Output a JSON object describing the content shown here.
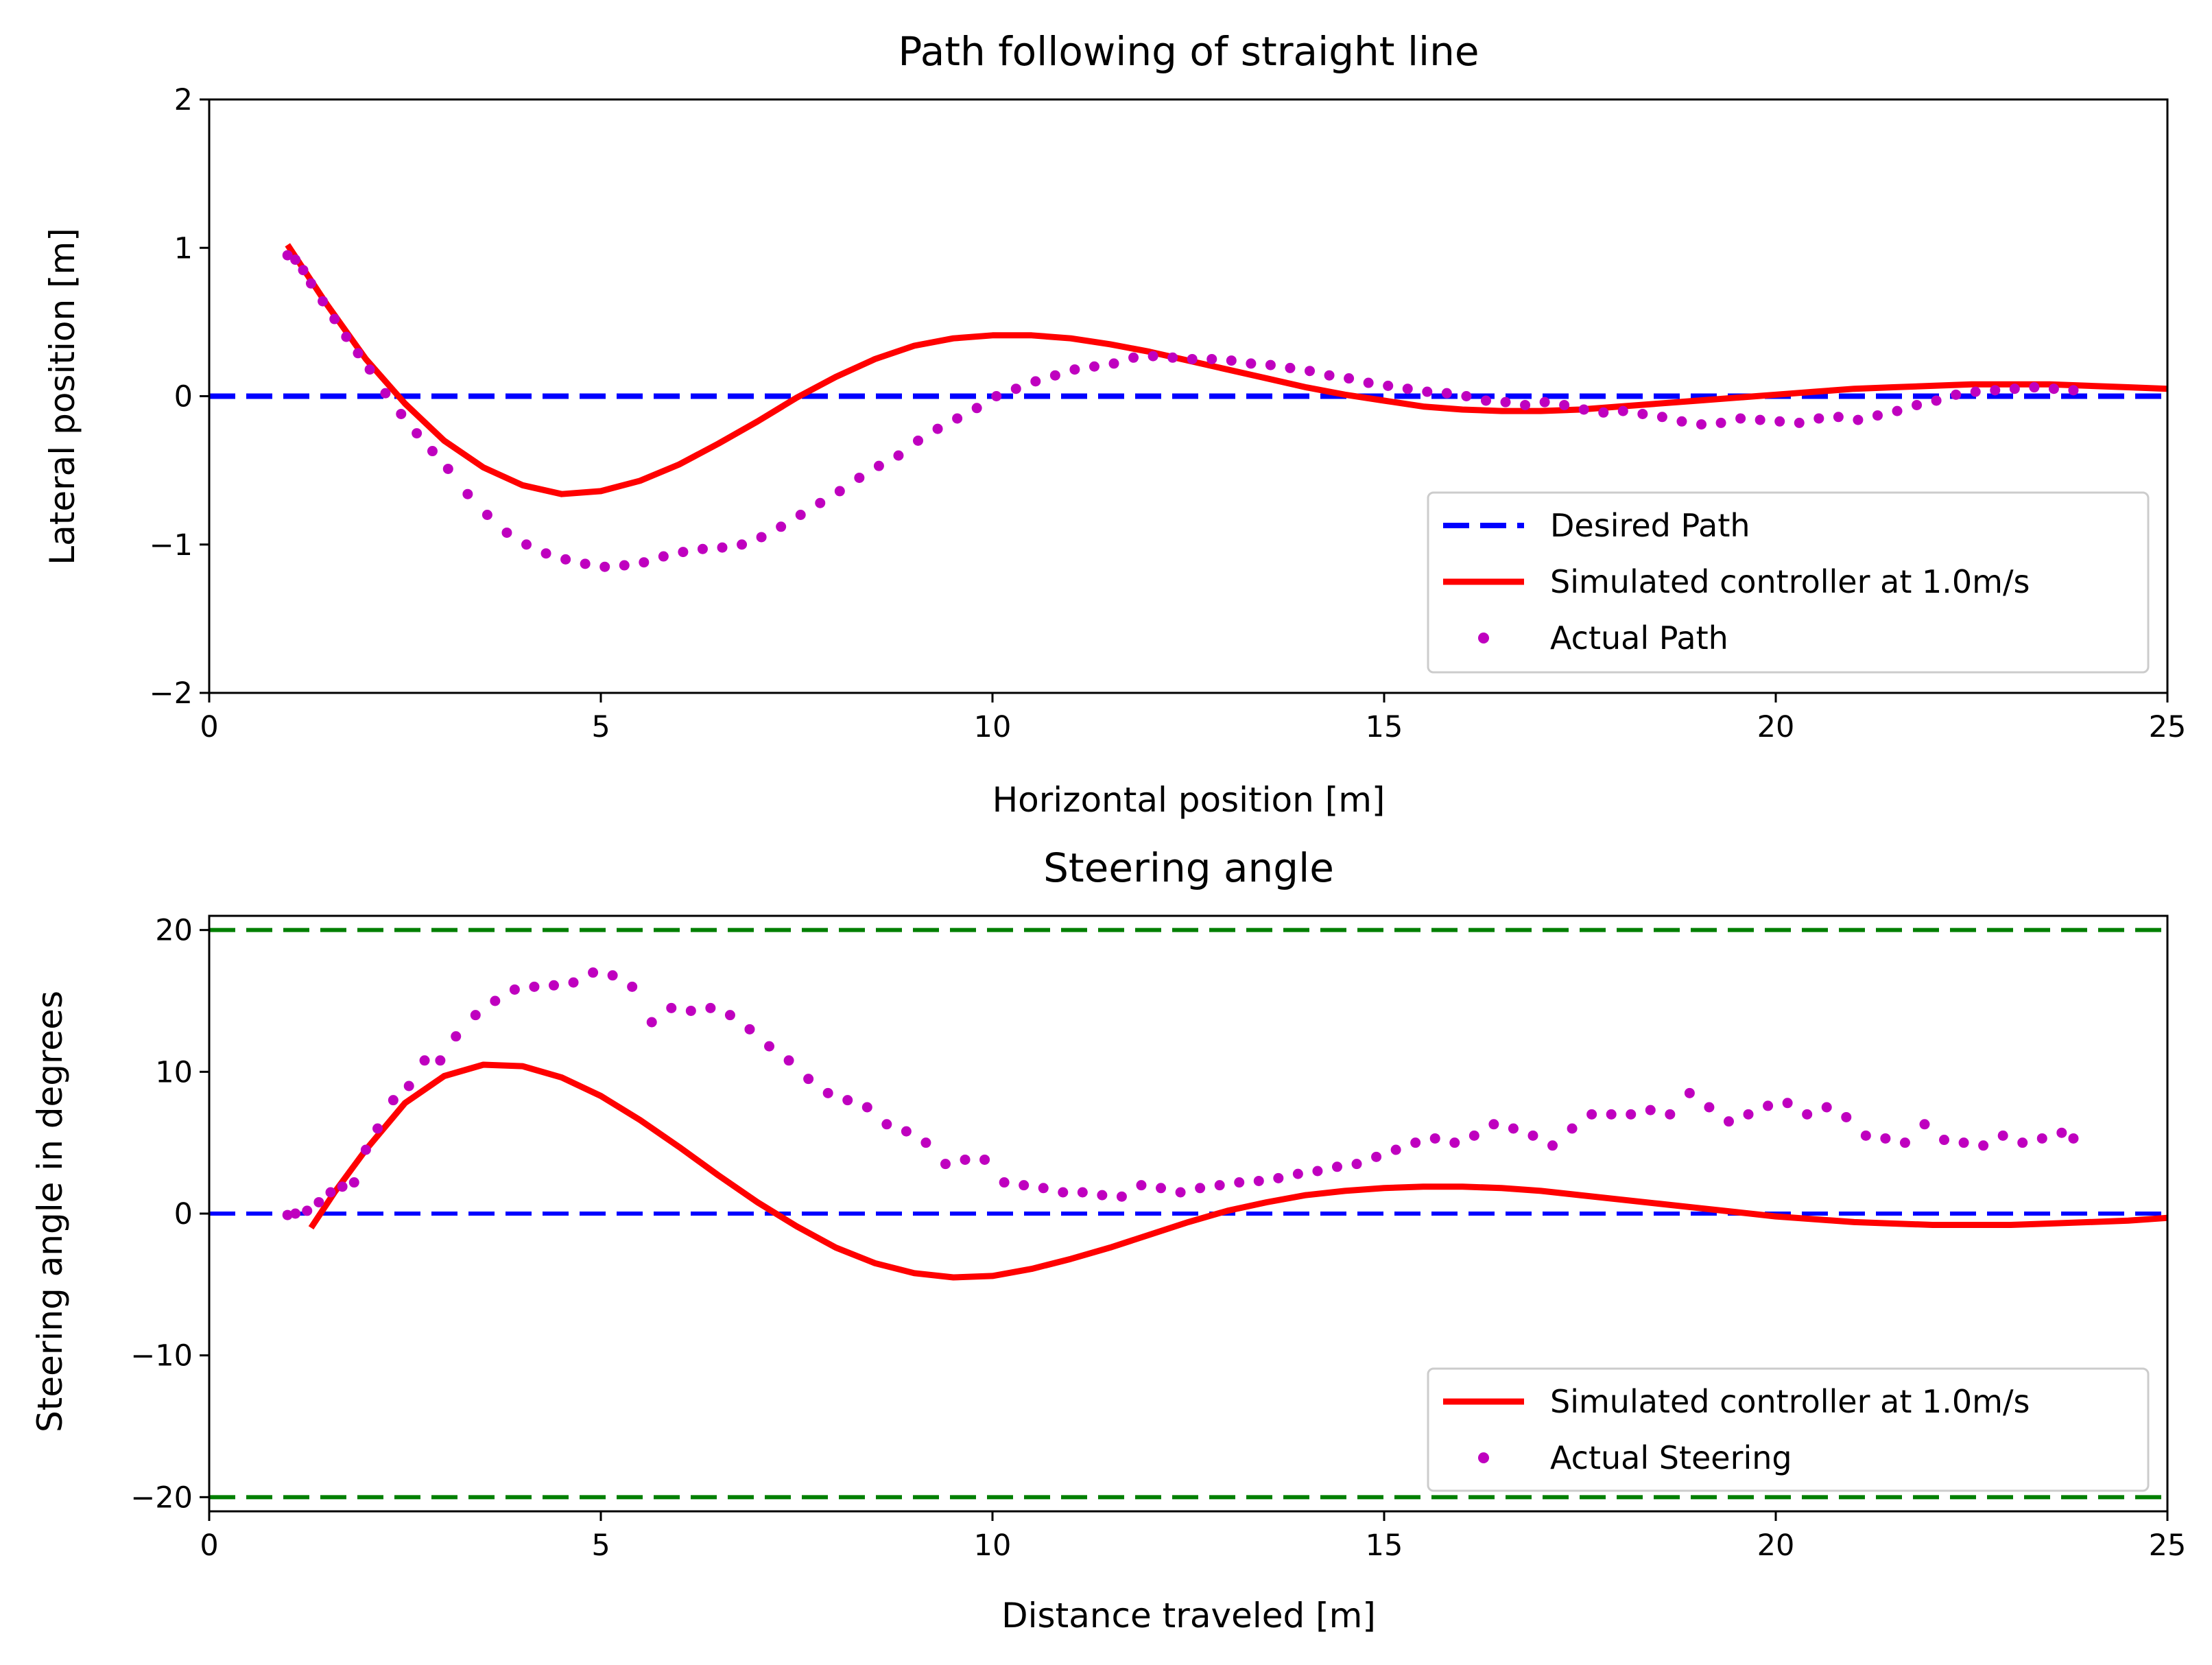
{
  "chart_data": [
    {
      "type": "line",
      "title": "Path following of straight line",
      "xlabel": "Horizontal position [m]",
      "ylabel": "Lateral position [m]",
      "xlim": [
        0,
        25
      ],
      "ylim": [
        -2,
        2
      ],
      "xticks": [
        0,
        5,
        10,
        15,
        20,
        25
      ],
      "yticks": [
        -2,
        -1,
        0,
        1,
        2
      ],
      "ytick_labels": [
        "−2",
        "−1",
        "0",
        "1",
        "2"
      ],
      "legend_position": "lower-right",
      "series": [
        {
          "name": "Desired Path",
          "style": "dashed",
          "color": "#0000ff",
          "x": [
            0,
            25
          ],
          "y": [
            0,
            0
          ]
        },
        {
          "name": "Simulated controller at 1.0m/s",
          "style": "solid",
          "color": "#ff0000",
          "x": [
            1.0,
            1.5,
            2.0,
            2.5,
            3.0,
            3.5,
            4.0,
            4.5,
            5.0,
            5.5,
            6.0,
            6.5,
            7.0,
            7.5,
            8.0,
            8.5,
            9.0,
            9.5,
            10.0,
            10.5,
            11.0,
            11.5,
            12.0,
            12.5,
            13.0,
            13.5,
            14.0,
            14.5,
            15.0,
            15.5,
            16.0,
            16.5,
            17.0,
            17.5,
            18.0,
            18.5,
            19.0,
            19.5,
            20.0,
            20.5,
            21.0,
            21.5,
            22.0,
            22.5,
            23.0,
            23.5,
            24.0,
            24.5,
            25.0
          ],
          "y": [
            1.02,
            0.62,
            0.25,
            -0.05,
            -0.3,
            -0.48,
            -0.6,
            -0.66,
            -0.64,
            -0.57,
            -0.46,
            -0.32,
            -0.17,
            -0.01,
            0.13,
            0.25,
            0.34,
            0.39,
            0.41,
            0.41,
            0.39,
            0.35,
            0.3,
            0.24,
            0.18,
            0.12,
            0.06,
            0.01,
            -0.03,
            -0.07,
            -0.09,
            -0.1,
            -0.1,
            -0.09,
            -0.07,
            -0.05,
            -0.03,
            -0.01,
            0.01,
            0.03,
            0.05,
            0.06,
            0.07,
            0.08,
            0.08,
            0.08,
            0.07,
            0.06,
            0.05
          ]
        },
        {
          "name": "Actual Path",
          "style": "dotted-markers",
          "color": "#bf00bf",
          "x": [
            1.0,
            1.1,
            1.2,
            1.3,
            1.45,
            1.6,
            1.75,
            1.9,
            2.05,
            2.25,
            2.45,
            2.65,
            2.85,
            3.05,
            3.3,
            3.55,
            3.8,
            4.05,
            4.3,
            4.55,
            4.8,
            5.05,
            5.3,
            5.55,
            5.8,
            6.05,
            6.3,
            6.55,
            6.8,
            7.05,
            7.3,
            7.55,
            7.8,
            8.05,
            8.3,
            8.55,
            8.8,
            9.05,
            9.3,
            9.55,
            9.8,
            10.05,
            10.3,
            10.55,
            10.8,
            11.05,
            11.3,
            11.55,
            11.8,
            12.05,
            12.3,
            12.55,
            12.8,
            13.05,
            13.3,
            13.55,
            13.8,
            14.05,
            14.3,
            14.55,
            14.8,
            15.05,
            15.3,
            15.55,
            15.8,
            16.05,
            16.3,
            16.55,
            16.8,
            17.05,
            17.3,
            17.55,
            17.8,
            18.05,
            18.3,
            18.55,
            18.8,
            19.05,
            19.3,
            19.55,
            19.8,
            20.05,
            20.3,
            20.55,
            20.8,
            21.05,
            21.3,
            21.55,
            21.8,
            22.05,
            22.3,
            22.55,
            22.8,
            23.05,
            23.3,
            23.55,
            23.8
          ],
          "y": [
            0.95,
            0.92,
            0.85,
            0.76,
            0.64,
            0.52,
            0.4,
            0.29,
            0.18,
            0.02,
            -0.12,
            -0.25,
            -0.37,
            -0.49,
            -0.66,
            -0.8,
            -0.92,
            -1.0,
            -1.06,
            -1.1,
            -1.13,
            -1.15,
            -1.14,
            -1.12,
            -1.08,
            -1.05,
            -1.03,
            -1.02,
            -1.0,
            -0.95,
            -0.88,
            -0.8,
            -0.72,
            -0.64,
            -0.55,
            -0.47,
            -0.4,
            -0.3,
            -0.22,
            -0.15,
            -0.08,
            0.0,
            0.05,
            0.1,
            0.14,
            0.18,
            0.2,
            0.22,
            0.26,
            0.27,
            0.26,
            0.25,
            0.25,
            0.24,
            0.22,
            0.21,
            0.19,
            0.17,
            0.14,
            0.12,
            0.09,
            0.07,
            0.05,
            0.03,
            0.02,
            0.0,
            -0.03,
            -0.04,
            -0.06,
            -0.04,
            -0.06,
            -0.09,
            -0.11,
            -0.1,
            -0.12,
            -0.14,
            -0.17,
            -0.19,
            -0.18,
            -0.15,
            -0.16,
            -0.17,
            -0.18,
            -0.15,
            -0.14,
            -0.16,
            -0.13,
            -0.1,
            -0.06,
            -0.03,
            0.01,
            0.03,
            0.04,
            0.05,
            0.06,
            0.05,
            0.04
          ]
        }
      ]
    },
    {
      "type": "line",
      "title": "Steering angle",
      "xlabel": "Distance traveled [m]",
      "ylabel": "Steering angle in degrees",
      "xlim": [
        0,
        25
      ],
      "ylim": [
        -21,
        21
      ],
      "xticks": [
        0,
        5,
        10,
        15,
        20,
        25
      ],
      "yticks": [
        -20,
        -10,
        0,
        10,
        20
      ],
      "ytick_labels": [
        "−20",
        "−10",
        "0",
        "10",
        "20"
      ],
      "legend_position": "lower-right",
      "reference_lines": [
        {
          "y": 20,
          "color": "#007f00",
          "style": "dashed"
        },
        {
          "y": -20,
          "color": "#007f00",
          "style": "dashed"
        },
        {
          "y": 0,
          "color": "#0000ff",
          "style": "dashed"
        }
      ],
      "series": [
        {
          "name": "Simulated controller at 1.0m/s",
          "style": "solid",
          "color": "#ff0000",
          "x": [
            1.3,
            1.6,
            2.0,
            2.5,
            3.0,
            3.5,
            4.0,
            4.5,
            5.0,
            5.5,
            6.0,
            6.5,
            7.0,
            7.5,
            8.0,
            8.5,
            9.0,
            9.5,
            10.0,
            10.5,
            11.0,
            11.5,
            12.0,
            12.5,
            13.0,
            13.5,
            14.0,
            14.5,
            15.0,
            15.5,
            16.0,
            16.5,
            17.0,
            17.5,
            18.0,
            18.5,
            19.0,
            19.5,
            20.0,
            20.5,
            21.0,
            21.5,
            22.0,
            22.5,
            23.0,
            23.5,
            24.0,
            24.5,
            25.0
          ],
          "y": [
            -1.0,
            1.5,
            4.5,
            7.8,
            9.7,
            10.5,
            10.4,
            9.6,
            8.3,
            6.6,
            4.7,
            2.7,
            0.8,
            -0.9,
            -2.4,
            -3.5,
            -4.2,
            -4.5,
            -4.4,
            -3.9,
            -3.2,
            -2.4,
            -1.5,
            -0.6,
            0.2,
            0.8,
            1.3,
            1.6,
            1.8,
            1.9,
            1.9,
            1.8,
            1.6,
            1.3,
            1.0,
            0.7,
            0.4,
            0.1,
            -0.2,
            -0.4,
            -0.6,
            -0.7,
            -0.8,
            -0.8,
            -0.8,
            -0.7,
            -0.6,
            -0.5,
            -0.3
          ]
        },
        {
          "name": "Actual Steering",
          "style": "dotted-markers",
          "color": "#bf00bf",
          "x": [
            1.0,
            1.1,
            1.25,
            1.4,
            1.55,
            1.7,
            1.85,
            2.0,
            2.15,
            2.35,
            2.55,
            2.75,
            2.95,
            3.15,
            3.4,
            3.65,
            3.9,
            4.15,
            4.4,
            4.65,
            4.9,
            5.15,
            5.4,
            5.65,
            5.9,
            6.15,
            6.4,
            6.65,
            6.9,
            7.15,
            7.4,
            7.65,
            7.9,
            8.15,
            8.4,
            8.65,
            8.9,
            9.15,
            9.4,
            9.65,
            9.9,
            10.15,
            10.4,
            10.65,
            10.9,
            11.15,
            11.4,
            11.65,
            11.9,
            12.15,
            12.4,
            12.65,
            12.9,
            13.15,
            13.4,
            13.65,
            13.9,
            14.15,
            14.4,
            14.65,
            14.9,
            15.15,
            15.4,
            15.65,
            15.9,
            16.15,
            16.4,
            16.65,
            16.9,
            17.15,
            17.4,
            17.65,
            17.9,
            18.15,
            18.4,
            18.65,
            18.9,
            19.15,
            19.4,
            19.65,
            19.9,
            20.15,
            20.4,
            20.65,
            20.9,
            21.15,
            21.4,
            21.65,
            21.9,
            22.15,
            22.4,
            22.65,
            22.9,
            23.15,
            23.4,
            23.65,
            23.8
          ],
          "y": [
            -0.1,
            0.0,
            0.2,
            0.8,
            1.5,
            1.9,
            2.2,
            4.5,
            6.0,
            8.0,
            9.0,
            10.8,
            10.8,
            12.5,
            14.0,
            15.0,
            15.8,
            16.0,
            16.1,
            16.3,
            17.0,
            16.8,
            16.0,
            13.5,
            14.5,
            14.3,
            14.5,
            14.0,
            13.0,
            11.8,
            10.8,
            9.5,
            8.5,
            8.0,
            7.5,
            6.3,
            5.8,
            5.0,
            3.5,
            3.8,
            3.8,
            2.2,
            2.0,
            1.8,
            1.5,
            1.5,
            1.3,
            1.2,
            2.0,
            1.8,
            1.5,
            1.8,
            2.0,
            2.2,
            2.3,
            2.5,
            2.8,
            3.0,
            3.3,
            3.5,
            4.0,
            4.5,
            5.0,
            5.3,
            5.0,
            5.5,
            6.3,
            6.0,
            5.5,
            4.8,
            6.0,
            7.0,
            7.0,
            7.0,
            7.3,
            7.0,
            8.5,
            7.5,
            6.5,
            7.0,
            7.6,
            7.8,
            7.0,
            7.5,
            6.8,
            5.5,
            5.3,
            5.0,
            6.3,
            5.2,
            5.0,
            4.8,
            5.5,
            5.0,
            5.3,
            5.7,
            5.3
          ]
        }
      ]
    }
  ]
}
